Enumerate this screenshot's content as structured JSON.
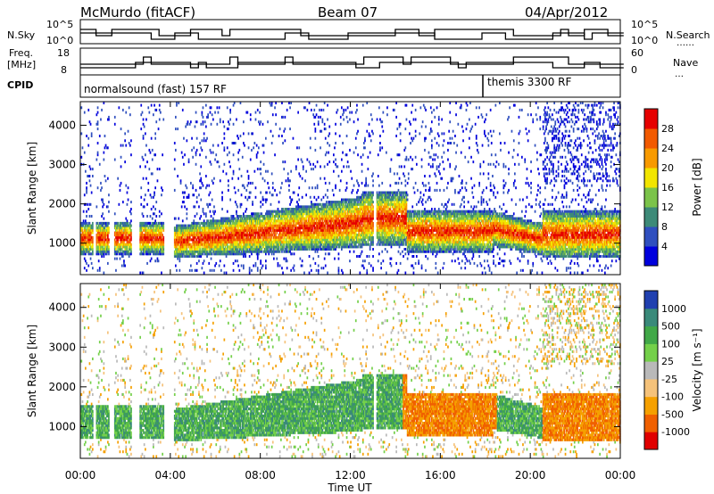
{
  "header": {
    "title": "McMurdo (fitACF)",
    "beam": "Beam 07",
    "date": "04/Apr/2012"
  },
  "status_panel": {
    "nsky_label": "N.Sky",
    "nsearch_label": "N.Search",
    "left_ticks": [
      "10^5",
      "10^0"
    ],
    "right_ticks": [
      "10^5",
      "10^0"
    ],
    "freq_label": "Freq.",
    "freq_unit": "[MHz]",
    "freq_ticks": [
      "18",
      "8"
    ],
    "nave_label": "Nave",
    "nave_ticks": [
      "60",
      "0"
    ],
    "cpid_label": "CPID",
    "cpid_mode_1": "normalsound (fast) 157 RF",
    "cpid_mode_2": "themis 3300 RF"
  },
  "chart_data": [
    {
      "type": "heatmap",
      "title": "",
      "xlabel": "Time UT",
      "ylabel": "Slant Range [km]",
      "x_ticks": [
        "00:00",
        "04:00",
        "08:00",
        "12:00",
        "16:00",
        "20:00",
        "00:00"
      ],
      "x_range_hours": [
        0,
        24
      ],
      "y_ticks": [
        "1000",
        "2000",
        "3000",
        "4000"
      ],
      "y_tick_values": [
        1000,
        2000,
        3000,
        4000
      ],
      "ylim": [
        200,
        4600
      ],
      "colorbar": {
        "label": "Power [dB]",
        "ticks": [
          "4",
          "8",
          "12",
          "16",
          "20",
          "24",
          "28"
        ],
        "colors": [
          "#0000dd",
          "#2f4fbf",
          "#3d8a78",
          "#7bc34a",
          "#f2e500",
          "#f89a00",
          "#f25a00",
          "#e60000"
        ]
      }
    },
    {
      "type": "heatmap",
      "title": "",
      "xlabel": "Time UT",
      "ylabel": "Slant Range [km]",
      "x_ticks": [
        "00:00",
        "04:00",
        "08:00",
        "12:00",
        "16:00",
        "20:00",
        "00:00"
      ],
      "x_range_hours": [
        0,
        24
      ],
      "y_ticks": [
        "1000",
        "2000",
        "3000",
        "4000"
      ],
      "y_tick_values": [
        1000,
        2000,
        3000,
        4000
      ],
      "ylim": [
        200,
        4600
      ],
      "colorbar": {
        "label": "Velocity [m s⁻¹]",
        "ticks": [
          "1000",
          "500",
          "100",
          "25",
          "-25",
          "-100",
          "-500",
          "-1000"
        ],
        "colors": [
          "#2040b0",
          "#3a8a7a",
          "#41a848",
          "#74d04a",
          "#b9b9b9",
          "#f5c27a",
          "#f5a000",
          "#f06000",
          "#e00000"
        ]
      }
    }
  ]
}
